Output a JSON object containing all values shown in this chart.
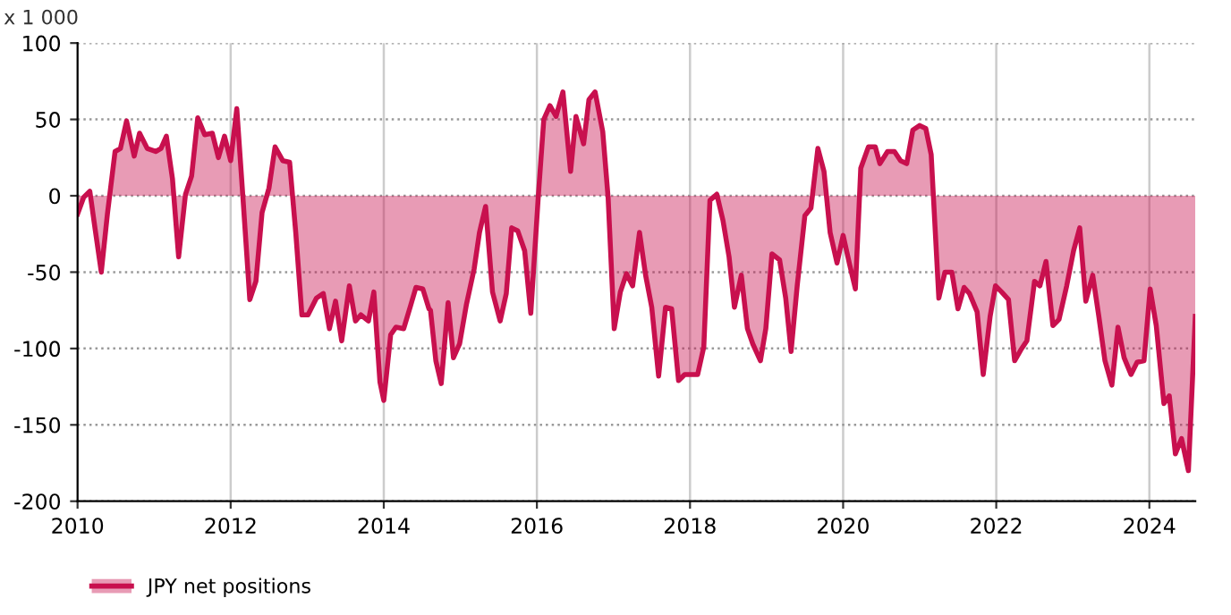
{
  "chart_data": {
    "type": "area",
    "annotations": [
      "x 1 000"
    ],
    "x": [
      2010.0,
      2010.08,
      2010.16,
      2010.23,
      2010.31,
      2010.39,
      2010.49,
      2010.56,
      2010.64,
      2010.74,
      2010.81,
      2010.91,
      2011.02,
      2011.09,
      2011.16,
      2011.24,
      2011.32,
      2011.41,
      2011.49,
      2011.57,
      2011.66,
      2011.76,
      2011.84,
      2011.92,
      2012.0,
      2012.08,
      2012.16,
      2012.25,
      2012.33,
      2012.41,
      2012.5,
      2012.58,
      2012.68,
      2012.77,
      2012.85,
      2012.93,
      2013.01,
      2013.12,
      2013.21,
      2013.29,
      2013.37,
      2013.45,
      2013.55,
      2013.63,
      2013.7,
      2013.8,
      2013.87,
      2013.95,
      2014.0,
      2014.09,
      2014.16,
      2014.26,
      2014.35,
      2014.42,
      2014.51,
      2014.59,
      2014.61,
      2014.68,
      2014.75,
      2014.84,
      2014.91,
      2014.99,
      2015.08,
      2015.18,
      2015.25,
      2015.33,
      2015.42,
      2015.52,
      2015.6,
      2015.67,
      2015.75,
      2015.84,
      2015.92,
      2016.02,
      2016.09,
      2016.17,
      2016.25,
      2016.34,
      2016.44,
      2016.51,
      2016.61,
      2016.68,
      2016.76,
      2016.86,
      2016.93,
      2017.01,
      2017.09,
      2017.17,
      2017.25,
      2017.34,
      2017.42,
      2017.5,
      2017.59,
      2017.68,
      2017.76,
      2017.85,
      2017.93,
      2018.02,
      2018.1,
      2018.18,
      2018.26,
      2018.35,
      2018.43,
      2018.51,
      2018.58,
      2018.67,
      2018.75,
      2018.82,
      2018.92,
      2018.99,
      2019.07,
      2019.17,
      2019.25,
      2019.32,
      2019.4,
      2019.5,
      2019.58,
      2019.67,
      2019.75,
      2019.83,
      2019.92,
      2020.0,
      2020.08,
      2020.16,
      2020.23,
      2020.33,
      2020.42,
      2020.48,
      2020.58,
      2020.67,
      2020.75,
      2020.83,
      2020.91,
      2021.0,
      2021.08,
      2021.15,
      2021.25,
      2021.33,
      2021.42,
      2021.5,
      2021.58,
      2021.65,
      2021.75,
      2021.83,
      2021.92,
      2021.99,
      2022.07,
      2022.16,
      2022.24,
      2022.32,
      2022.4,
      2022.5,
      2022.57,
      2022.65,
      2022.74,
      2022.82,
      2022.92,
      2023.01,
      2023.09,
      2023.17,
      2023.26,
      2023.34,
      2023.42,
      2023.51,
      2023.59,
      2023.67,
      2023.76,
      2023.84,
      2023.93,
      2024.01,
      2024.09,
      2024.19,
      2024.26,
      2024.34,
      2024.42,
      2024.51,
      2024.6
    ],
    "series": [
      {
        "name": "JPY net positions",
        "color": "#c8104e",
        "values": [
          -12,
          -1,
          3,
          -22,
          -50,
          -12,
          29,
          31,
          49,
          26,
          41,
          31,
          29,
          31,
          39,
          11,
          -40,
          1,
          13,
          51,
          40,
          41,
          25,
          39,
          23,
          57,
          -1,
          -68,
          -56,
          -11,
          5,
          32,
          23,
          22,
          -24,
          -78,
          -78,
          -67,
          -64,
          -87,
          -69,
          -95,
          -59,
          -82,
          -78,
          -82,
          -63,
          -122,
          -134,
          -91,
          -86,
          -87,
          -72,
          -60,
          -61,
          -74,
          -75,
          -108,
          -123,
          -70,
          -106,
          -97,
          -71,
          -48,
          -24,
          -7,
          -63,
          -82,
          -64,
          -21,
          -23,
          -36,
          -77,
          1,
          50,
          59,
          52,
          68,
          16,
          52,
          34,
          63,
          68,
          42,
          -1,
          -87,
          -63,
          -51,
          -59,
          -24,
          -52,
          -73,
          -118,
          -73,
          -74,
          -121,
          -117,
          -117,
          -117,
          -99,
          -3,
          1,
          -16,
          -40,
          -73,
          -52,
          -87,
          -97,
          -108,
          -87,
          -38,
          -42,
          -67,
          -102,
          -59,
          -13,
          -8,
          31,
          16,
          -24,
          -44,
          -26,
          -44,
          -61,
          18,
          32,
          32,
          21,
          29,
          29,
          23,
          21,
          43,
          46,
          44,
          27,
          -67,
          -50,
          -50,
          -74,
          -60,
          -64,
          -76,
          -117,
          -79,
          -59,
          -63,
          -68,
          -108,
          -101,
          -95,
          -56,
          -59,
          -43,
          -85,
          -81,
          -59,
          -36,
          -21,
          -69,
          -52,
          -79,
          -108,
          -124,
          -86,
          -106,
          -117,
          -109,
          -108,
          -61,
          -85,
          -136,
          -131,
          -169,
          -159,
          -180,
          -79
        ]
      }
    ],
    "xlim": [
      2010,
      2024.6
    ],
    "xticks": [
      2010,
      2012,
      2014,
      2016,
      2018,
      2020,
      2022,
      2024
    ],
    "ylim": [
      -200,
      100
    ],
    "yticks": [
      -200,
      -150,
      -100,
      -50,
      0,
      50,
      100
    ],
    "grid": true,
    "legend": "bottom left",
    "line_style": "solid"
  }
}
